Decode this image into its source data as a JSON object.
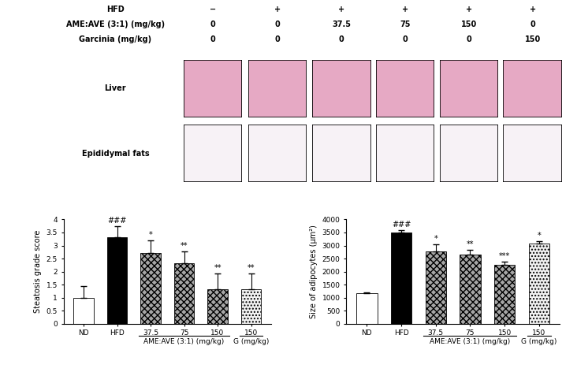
{
  "header_table": {
    "rows": [
      {
        "label": "HFD",
        "cells": [
          "−",
          "+",
          "+",
          "+",
          "+",
          "+"
        ]
      },
      {
        "label": "AME:AVE (3:1) (mg/kg)",
        "cells": [
          "0",
          "0",
          "37.5",
          "75",
          "150",
          "0"
        ]
      },
      {
        "label": "Garcinia (mg/kg)",
        "cells": [
          "0",
          "0",
          "0",
          "0",
          "0",
          "150"
        ]
      }
    ]
  },
  "image_rows": [
    {
      "label": "Liver",
      "color": "#e6a9c4"
    },
    {
      "label": "Epididymal fats",
      "color": "#f7f2f6"
    }
  ],
  "chart_data": [
    {
      "type": "bar",
      "categories": [
        "ND",
        "HFD",
        "37.5",
        "75",
        "150",
        "150"
      ],
      "category_groups": [
        null,
        null,
        "AME:AVE (3:1) (mg/kg)",
        "AME:AVE (3:1) (mg/kg)",
        "AME:AVE (3:1) (mg/kg)",
        "G (mg/kg)"
      ],
      "values": [
        1.0,
        3.33,
        2.7,
        2.33,
        1.33,
        1.33
      ],
      "errors": [
        0.45,
        0.4,
        0.5,
        0.45,
        0.6,
        0.6
      ],
      "significance": [
        null,
        "###",
        "*",
        "**",
        "**",
        "**"
      ],
      "colors": [
        "#ffffff",
        "#000000",
        "#a6a6a6",
        "#a6a6a6",
        "#a6a6a6",
        "#f2f2f2"
      ],
      "y_label": "Steatosis grade score",
      "ylim": [
        0,
        4
      ],
      "yticks": [
        0,
        0.5,
        1,
        1.5,
        2,
        2.5,
        3,
        3.5,
        4
      ]
    },
    {
      "type": "bar",
      "categories": [
        "ND",
        "HFD",
        "37.5",
        "75",
        "150",
        "150"
      ],
      "category_groups": [
        null,
        null,
        "AME:AVE (3:1) (mg/kg)",
        "AME:AVE (3:1) (mg/kg)",
        "AME:AVE (3:1) (mg/kg)",
        "G (mg/kg)"
      ],
      "values": [
        1170,
        3500,
        2780,
        2650,
        2250,
        3070
      ],
      "errors": [
        30,
        80,
        270,
        170,
        130,
        110
      ],
      "significance": [
        null,
        "###",
        "*",
        "**",
        "***",
        "*"
      ],
      "colors": [
        "#ffffff",
        "#000000",
        "#a6a6a6",
        "#a6a6a6",
        "#a6a6a6",
        "#f2f2f2"
      ],
      "y_label": "Size of adipocytes (μm²)",
      "ylim": [
        0,
        4000
      ],
      "yticks": [
        0,
        500,
        1000,
        1500,
        2000,
        2500,
        3000,
        3500,
        4000
      ]
    }
  ]
}
